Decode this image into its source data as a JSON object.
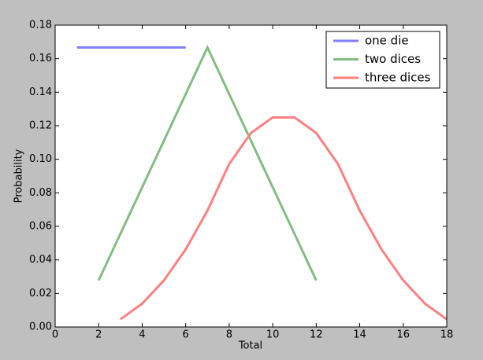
{
  "chart_data": {
    "type": "line",
    "xlabel": "Total",
    "ylabel": "Probability",
    "xlim": [
      0,
      18
    ],
    "ylim": [
      0,
      0.18
    ],
    "xticks": [
      0,
      2,
      4,
      6,
      8,
      10,
      12,
      14,
      16,
      18
    ],
    "yticks": [
      {
        "value": 0,
        "label": "0.00"
      },
      {
        "value": 0.02,
        "label": "0.02"
      },
      {
        "value": 0.04,
        "label": "0.04"
      },
      {
        "value": 0.06,
        "label": "0.06"
      },
      {
        "value": 0.08,
        "label": "0.08"
      },
      {
        "value": 0.1,
        "label": "0.10"
      },
      {
        "value": 0.12,
        "label": "0.12"
      },
      {
        "value": 0.14,
        "label": "0.14"
      },
      {
        "value": 0.16,
        "label": "0.16"
      },
      {
        "value": 0.18,
        "label": "0.18"
      }
    ],
    "legend": "upper right",
    "series": [
      {
        "name": "one die",
        "color": "#7f7fff",
        "x": [
          1,
          2,
          3,
          4,
          5,
          6
        ],
        "values": [
          0.1667,
          0.1667,
          0.1667,
          0.1667,
          0.1667,
          0.1667
        ]
      },
      {
        "name": "two dices",
        "color": "#7fbf7f",
        "x": [
          2,
          3,
          4,
          5,
          6,
          7,
          8,
          9,
          10,
          11,
          12
        ],
        "values": [
          0.0278,
          0.0556,
          0.0833,
          0.1111,
          0.1389,
          0.1667,
          0.1389,
          0.1111,
          0.0833,
          0.0556,
          0.0278
        ]
      },
      {
        "name": "three dices",
        "color": "#ff7f7f",
        "x": [
          3,
          4,
          5,
          6,
          7,
          8,
          9,
          10,
          11,
          12,
          13,
          14,
          15,
          16,
          17,
          18
        ],
        "values": [
          0.0046,
          0.0139,
          0.0278,
          0.0463,
          0.0694,
          0.0972,
          0.1157,
          0.125,
          0.125,
          0.1157,
          0.0972,
          0.0694,
          0.0463,
          0.0278,
          0.0139,
          0.0046
        ]
      }
    ]
  }
}
